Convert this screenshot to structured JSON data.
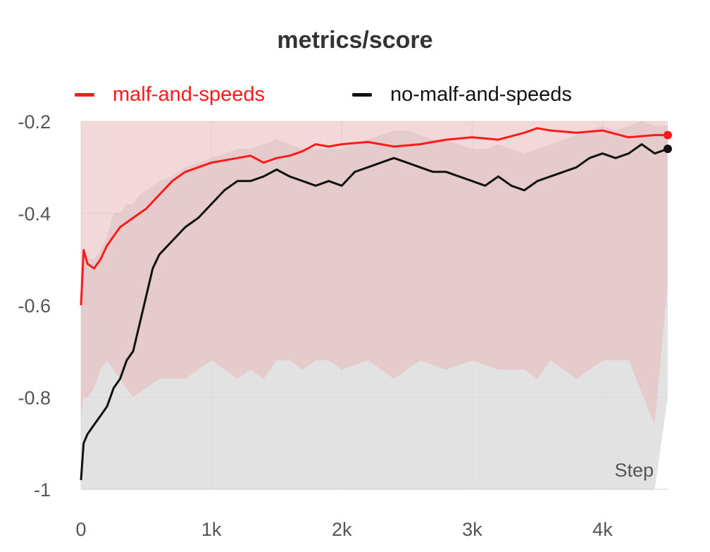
{
  "chart_data": {
    "type": "line",
    "title": "metrics/score",
    "xlabel": "Step",
    "ylabel": "",
    "xlim": [
      0,
      4500
    ],
    "ylim": [
      -1,
      -0.2
    ],
    "xticks": [
      0,
      1000,
      2000,
      3000,
      4000
    ],
    "xtick_labels": [
      "0",
      "1k",
      "2k",
      "3k",
      "4k"
    ],
    "yticks": [
      -0.2,
      -0.4,
      -0.6,
      -0.8,
      -1
    ],
    "ytick_labels": [
      "-0.2",
      "-0.4",
      "-0.6",
      "-0.8",
      "-1"
    ],
    "grid": true,
    "legend_position": "top",
    "series": [
      {
        "name": "malf-and-speeds",
        "color": "#ff1a1a",
        "band_color": "#e8b8b8",
        "x": [
          0,
          20,
          50,
          100,
          150,
          200,
          300,
          400,
          500,
          600,
          700,
          800,
          900,
          1000,
          1100,
          1200,
          1300,
          1400,
          1500,
          1600,
          1700,
          1800,
          1900,
          2000,
          2200,
          2400,
          2600,
          2800,
          3000,
          3200,
          3400,
          3500,
          3600,
          3800,
          4000,
          4200,
          4400,
          4500
        ],
        "values": [
          -0.6,
          -0.48,
          -0.51,
          -0.52,
          -0.5,
          -0.47,
          -0.43,
          -0.41,
          -0.39,
          -0.36,
          -0.33,
          -0.31,
          -0.3,
          -0.29,
          -0.285,
          -0.28,
          -0.275,
          -0.29,
          -0.28,
          -0.275,
          -0.265,
          -0.25,
          -0.255,
          -0.25,
          -0.245,
          -0.255,
          -0.25,
          -0.24,
          -0.235,
          -0.24,
          -0.225,
          -0.215,
          -0.22,
          -0.225,
          -0.22,
          -0.235,
          -0.23,
          -0.23
        ],
        "band_lower": [
          -0.85,
          -0.8,
          -0.8,
          -0.78,
          -0.74,
          -0.72,
          -0.76,
          -0.8,
          -0.78,
          -0.76,
          -0.76,
          -0.76,
          -0.74,
          -0.72,
          -0.74,
          -0.76,
          -0.74,
          -0.76,
          -0.72,
          -0.72,
          -0.74,
          -0.72,
          -0.72,
          -0.74,
          -0.72,
          -0.76,
          -0.72,
          -0.74,
          -0.72,
          -0.74,
          -0.74,
          -0.76,
          -0.72,
          -0.76,
          -0.72,
          -0.72,
          -0.86,
          -0.55
        ],
        "band_upper": [
          -0.2,
          -0.2,
          -0.2,
          -0.2,
          -0.2,
          -0.2,
          -0.2,
          -0.2,
          -0.2,
          -0.2,
          -0.2,
          -0.2,
          -0.2,
          -0.2,
          -0.2,
          -0.2,
          -0.2,
          -0.2,
          -0.2,
          -0.2,
          -0.2,
          -0.2,
          -0.2,
          -0.2,
          -0.2,
          -0.2,
          -0.2,
          -0.2,
          -0.2,
          -0.2,
          -0.2,
          -0.2,
          -0.2,
          -0.2,
          -0.2,
          -0.2,
          -0.2,
          -0.2
        ]
      },
      {
        "name": "no-malf-and-speeds",
        "color": "#111111",
        "band_color": "#d8d8d8",
        "x": [
          0,
          20,
          50,
          100,
          150,
          200,
          250,
          300,
          350,
          400,
          450,
          500,
          550,
          600,
          700,
          800,
          900,
          1000,
          1100,
          1200,
          1300,
          1400,
          1500,
          1600,
          1700,
          1800,
          1900,
          2000,
          2100,
          2200,
          2300,
          2400,
          2500,
          2600,
          2700,
          2800,
          2900,
          3000,
          3100,
          3200,
          3300,
          3400,
          3500,
          3600,
          3700,
          3800,
          3900,
          4000,
          4100,
          4200,
          4300,
          4400,
          4500
        ],
        "values": [
          -0.98,
          -0.9,
          -0.88,
          -0.86,
          -0.84,
          -0.82,
          -0.78,
          -0.76,
          -0.72,
          -0.7,
          -0.64,
          -0.58,
          -0.52,
          -0.49,
          -0.46,
          -0.43,
          -0.41,
          -0.38,
          -0.35,
          -0.33,
          -0.33,
          -0.32,
          -0.305,
          -0.32,
          -0.33,
          -0.34,
          -0.33,
          -0.34,
          -0.31,
          -0.3,
          -0.29,
          -0.28,
          -0.29,
          -0.3,
          -0.31,
          -0.31,
          -0.32,
          -0.33,
          -0.34,
          -0.32,
          -0.34,
          -0.35,
          -0.33,
          -0.32,
          -0.31,
          -0.3,
          -0.28,
          -0.27,
          -0.28,
          -0.27,
          -0.25,
          -0.27,
          -0.26
        ],
        "band_lower": [
          -1,
          -1,
          -1,
          -1,
          -1,
          -1,
          -1,
          -1,
          -1,
          -1,
          -1,
          -1,
          -1,
          -1,
          -1,
          -1,
          -1,
          -1,
          -1,
          -1,
          -1,
          -1,
          -1,
          -1,
          -1,
          -1,
          -1,
          -1,
          -1,
          -1,
          -1,
          -1,
          -1,
          -1,
          -1,
          -1,
          -1,
          -1,
          -1,
          -1,
          -1,
          -1,
          -1,
          -1,
          -1,
          -1,
          -1,
          -1,
          -1,
          -1,
          -1,
          -1,
          -0.8
        ],
        "band_upper": [
          -0.55,
          -0.5,
          -0.5,
          -0.5,
          -0.48,
          -0.45,
          -0.4,
          -0.4,
          -0.38,
          -0.38,
          -0.36,
          -0.35,
          -0.34,
          -0.33,
          -0.32,
          -0.3,
          -0.29,
          -0.28,
          -0.27,
          -0.26,
          -0.26,
          -0.25,
          -0.24,
          -0.25,
          -0.26,
          -0.26,
          -0.26,
          -0.26,
          -0.25,
          -0.24,
          -0.23,
          -0.22,
          -0.22,
          -0.23,
          -0.24,
          -0.24,
          -0.25,
          -0.26,
          -0.26,
          -0.25,
          -0.26,
          -0.27,
          -0.26,
          -0.25,
          -0.24,
          -0.23,
          -0.22,
          -0.21,
          -0.22,
          -0.21,
          -0.2,
          -0.21,
          -0.21
        ]
      }
    ]
  }
}
